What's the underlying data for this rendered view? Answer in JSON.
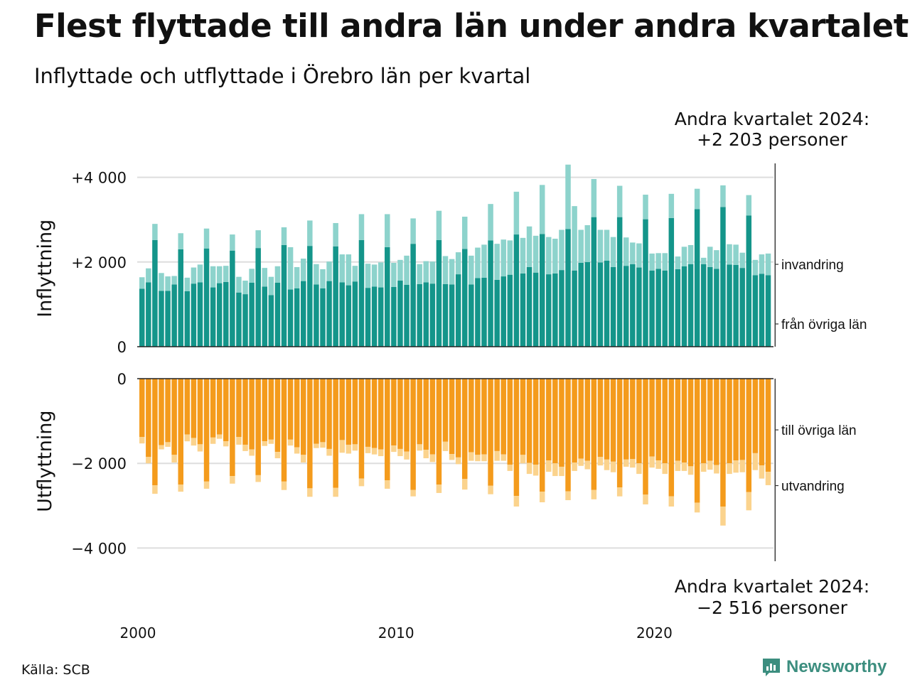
{
  "title": "Flest flyttade till andra län under andra kvartalet",
  "subtitle": "Inflyttade och utflyttade i Örebro län per kvartal",
  "source": "Källa: SCB",
  "brand": "Newsworthy",
  "colors": {
    "in_county": "#14958a",
    "in_immigration": "#8dd3cc",
    "out_county": "#f49b1c",
    "out_emigration": "#fbd38d",
    "grid": "#dddddd",
    "axis": "#222222",
    "brand": "#3c8e7f"
  },
  "chart_data": {
    "type": "bar",
    "stacked": true,
    "x_range": [
      "2000-Q1",
      "2024-Q2"
    ],
    "x_ticks": [
      {
        "year": 2000,
        "label": "2000"
      },
      {
        "year": 2010,
        "label": "2010"
      },
      {
        "year": 2020,
        "label": "2020"
      }
    ],
    "panels": [
      {
        "id": "inflyttning",
        "ylabel": "Inflyttning",
        "ylim": [
          0,
          4300
        ],
        "y_ticks": [
          {
            "value": 4000,
            "label": "+4 000"
          },
          {
            "value": 2000,
            "label": "+2 000"
          },
          {
            "value": 0,
            "label": "0"
          }
        ],
        "annotation": {
          "line1": "Andra kvartalet 2024:",
          "line2": "+2 203 personer"
        },
        "series": [
          {
            "name": "från övriga län",
            "values": [
              1370,
              1520,
              2520,
              1320,
              1320,
              1470,
              2300,
              1310,
              1490,
              1520,
              2320,
              1400,
              1500,
              1530,
              2270,
              1280,
              1240,
              1510,
              2330,
              1420,
              1220,
              1510,
              2400,
              1350,
              1380,
              1550,
              2380,
              1470,
              1380,
              1550,
              2370,
              1520,
              1450,
              1540,
              2520,
              1390,
              1420,
              1400,
              2350,
              1410,
              1560,
              1460,
              2430,
              1480,
              1520,
              1490,
              2520,
              1480,
              1470,
              1710,
              2310,
              1470,
              1620,
              1630,
              2510,
              1580,
              1660,
              1700,
              2650,
              1730,
              1880,
              1750,
              2660,
              1710,
              1730,
              1810,
              2780,
              1800,
              1980,
              2000,
              3060,
              1990,
              2030,
              1880,
              3060,
              1910,
              1950,
              1870,
              3010,
              1800,
              1840,
              1800,
              3040,
              1830,
              1900,
              1950,
              3250,
              1950,
              1880,
              1840,
              3300,
              1940,
              1930,
              1860,
              3100,
              1690,
              1720,
              1690
            ]
          },
          {
            "name": "invandring",
            "values": [
              270,
              330,
              380,
              420,
              340,
              200,
              380,
              320,
              380,
              420,
              470,
              500,
              400,
              380,
              380,
              370,
              320,
              330,
              420,
              440,
              430,
              390,
              420,
              1000,
              500,
              530,
              600,
              480,
              450,
              460,
              550,
              660,
              730,
              370,
              610,
              570,
              520,
              590,
              780,
              570,
              490,
              690,
              600,
              470,
              500,
              520,
              690,
              660,
              600,
              520,
              760,
              680,
              720,
              780,
              860,
              850,
              870,
              810,
              1010,
              840,
              960,
              870,
              1160,
              880,
              820,
              950,
              1520,
              1520,
              780,
              870,
              900,
              770,
              730,
              710,
              740,
              670,
              510,
              570,
              580,
              400,
              370,
              410,
              570,
              300,
              460,
              450,
              480,
              150,
              480,
              440,
              510,
              480,
              480,
              360,
              480,
              360,
              460,
              510
            ]
          }
        ]
      },
      {
        "id": "utflyttning",
        "ylabel": "Utflyttning",
        "ylim": [
          -4300,
          0
        ],
        "y_ticks": [
          {
            "value": 0,
            "label": "0"
          },
          {
            "value": -2000,
            "label": "−2 000"
          },
          {
            "value": -4000,
            "label": "−4 000"
          }
        ],
        "annotation": {
          "line1": "Andra kvartalet 2024:",
          "line2": "−2 516 personer"
        },
        "series": [
          {
            "name": "till övriga län",
            "values": [
              -1380,
              -1850,
              -2520,
              -1570,
              -1500,
              -1800,
              -2500,
              -1320,
              -1400,
              -1550,
              -2430,
              -1390,
              -1320,
              -1480,
              -2300,
              -1380,
              -1560,
              -1670,
              -2280,
              -1480,
              -1440,
              -1730,
              -2430,
              -1440,
              -1620,
              -1800,
              -2590,
              -1540,
              -1500,
              -1660,
              -2580,
              -1450,
              -1560,
              -1550,
              -2360,
              -1610,
              -1640,
              -1670,
              -2400,
              -1580,
              -1660,
              -1720,
              -2630,
              -1550,
              -1680,
              -1790,
              -2500,
              -1490,
              -1780,
              -1860,
              -2370,
              -1740,
              -1800,
              -1790,
              -2530,
              -1710,
              -1790,
              -2030,
              -2770,
              -1800,
              -1990,
              -2030,
              -2670,
              -1930,
              -2000,
              -2080,
              -2660,
              -1980,
              -1890,
              -1940,
              -2630,
              -1850,
              -1910,
              -1960,
              -2570,
              -1910,
              -1900,
              -2000,
              -2740,
              -1840,
              -1930,
              -2000,
              -2780,
              -1940,
              -1980,
              -2070,
              -2930,
              -2000,
              -1940,
              -2040,
              -3020,
              -2000,
              -1930,
              -1920,
              -2680,
              -1760,
              -2050,
              -2200
            ]
          },
          {
            "name": "utvandring",
            "values": [
              -150,
              -150,
              -200,
              -100,
              -110,
              -180,
              -170,
              -160,
              -180,
              -170,
              -170,
              -150,
              -100,
              -120,
              -180,
              -180,
              -150,
              -150,
              -160,
              -110,
              -100,
              -150,
              -200,
              -140,
              -150,
              -180,
              -200,
              -100,
              -130,
              -160,
              -210,
              -300,
              -210,
              -150,
              -180,
              -150,
              -150,
              -160,
              -200,
              -150,
              -170,
              -190,
              -150,
              -150,
              -200,
              -180,
              -200,
              -220,
              -140,
              -160,
              -250,
              -200,
              -150,
              -160,
              -200,
              -230,
              -150,
              -150,
              -250,
              -200,
              -260,
              -260,
              -250,
              -270,
              -300,
              -220,
              -210,
              -200,
              -170,
              -200,
              -220,
              -200,
              -250,
              -250,
              -210,
              -170,
              -200,
              -250,
              -230,
              -260,
              -200,
              -250,
              -240,
              -240,
              -200,
              -200,
              -230,
              -200,
              -210,
              -200,
              -450,
              -250,
              -290,
              -290,
              -430,
              -400,
              -310,
              -316
            ]
          }
        ]
      }
    ],
    "legend": [
      {
        "series": "invandring",
        "label": "invandring"
      },
      {
        "series": "från övriga län",
        "label": "från övriga län"
      },
      {
        "series": "till övriga län",
        "label": "till övriga län"
      },
      {
        "series": "utvandring",
        "label": "utvandring"
      }
    ]
  }
}
